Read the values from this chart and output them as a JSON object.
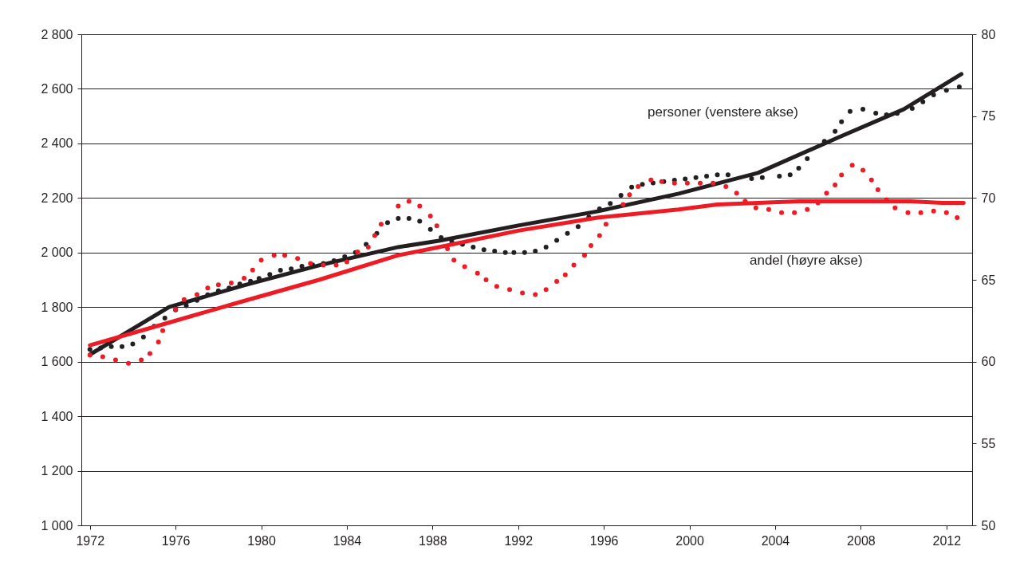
{
  "chart_data": {
    "type": "line",
    "xlim": [
      1971.6,
      2013.2
    ],
    "xticks": [
      1972,
      1976,
      1980,
      1984,
      1988,
      1992,
      1996,
      2000,
      2004,
      2008,
      2012
    ],
    "ylim": [
      1000,
      2800
    ],
    "yticks": [
      {
        "value": 1000,
        "label": "1 000"
      },
      {
        "value": 1200,
        "label": "1 200"
      },
      {
        "value": 1400,
        "label": "1 400"
      },
      {
        "value": 1600,
        "label": "1 600"
      },
      {
        "value": 1800,
        "label": "1 800"
      },
      {
        "value": 2000,
        "label": "2 000"
      },
      {
        "value": 2200,
        "label": "2 200"
      },
      {
        "value": 2400,
        "label": "2 400"
      },
      {
        "value": 2600,
        "label": "2 600"
      },
      {
        "value": 2800,
        "label": "2 800"
      }
    ],
    "y2lim": [
      50,
      80
    ],
    "y2ticks": [
      50,
      55,
      60,
      65,
      70,
      75,
      80
    ],
    "grid": "y",
    "line_style": "solid",
    "annotations": [
      "personer (venstere akse)",
      "andel (høyre akse)"
    ],
    "series": [
      {
        "type": "scatter",
        "color": "#231f20",
        "x": [
          1972.0,
          1972.5,
          1973.0,
          1973.5,
          1974.0,
          1974.5,
          1975.0,
          1975.5,
          1976.0,
          1976.5,
          1977.0,
          1977.5,
          1978.0,
          1978.5,
          1979.0,
          1979.5,
          1979.9,
          1980.4,
          1980.9,
          1981.4,
          1981.9,
          1982.4,
          1982.9,
          1983.4,
          1983.9,
          1984.4,
          1984.9,
          1985.4,
          1985.9,
          1986.4,
          1986.9,
          1987.4,
          1987.9,
          1988.4,
          1988.9,
          1989.4,
          1989.9,
          1990.4,
          1990.9,
          1991.4,
          1991.8,
          1992.3,
          1992.8,
          1993.3,
          1993.8,
          1994.3,
          1994.8,
          1995.3,
          1995.8,
          1996.3,
          1996.8,
          1997.3,
          1997.8,
          1998.3,
          1998.8,
          1999.3,
          1999.8,
          2000.3,
          2000.8,
          2001.3,
          2001.8,
          2002.9,
          2003.4,
          2004.2,
          2004.7,
          2005.1,
          2005.5,
          2006.3,
          2006.8,
          2007.1,
          2007.5,
          2008.1,
          2008.7,
          2009.2,
          2009.7,
          2010.4,
          2010.9,
          2011.4,
          2012.0,
          2012.6
        ],
        "values": [
          1645,
          1650,
          1655,
          1655,
          1665,
          1690,
          1730,
          1760,
          1790,
          1805,
          1825,
          1845,
          1860,
          1870,
          1885,
          1895,
          1905,
          1920,
          1935,
          1940,
          1950,
          1955,
          1960,
          1970,
          1985,
          2000,
          2030,
          2070,
          2110,
          2125,
          2125,
          2115,
          2085,
          2055,
          2040,
          2030,
          2020,
          2010,
          2005,
          2000,
          2000,
          2000,
          2005,
          2020,
          2045,
          2070,
          2095,
          2130,
          2160,
          2180,
          2210,
          2240,
          2250,
          2255,
          2260,
          2265,
          2270,
          2275,
          2280,
          2285,
          2285,
          2271,
          2275,
          2280,
          2285,
          2309,
          2344,
          2408,
          2444,
          2479,
          2517,
          2525,
          2511,
          2505,
          2510,
          2528,
          2552,
          2578,
          2595,
          2607
        ]
      },
      {
        "type": "scatter",
        "color": "#ed1c24",
        "axis": "y2",
        "x": [
          1972.0,
          1972.6,
          1973.2,
          1973.8,
          1974.4,
          1974.8,
          1975.2,
          1975.4,
          1976.0,
          1976.4,
          1977.0,
          1977.5,
          1978.0,
          1978.6,
          1979.2,
          1979.6,
          1980.0,
          1980.6,
          1981.1,
          1981.7,
          1982.3,
          1982.9,
          1983.5,
          1984.0,
          1984.5,
          1985.0,
          1985.3,
          1985.6,
          1986.4,
          1986.9,
          1987.4,
          1987.9,
          1988.2,
          1988.7,
          1989.0,
          1989.5,
          1990.1,
          1990.5,
          1991.0,
          1991.6,
          1992.2,
          1992.8,
          1993.3,
          1993.8,
          1994.2,
          1994.6,
          1995.1,
          1995.4,
          1995.8,
          1996.1,
          1996.9,
          1997.2,
          1997.6,
          1998.2,
          1998.7,
          1999.3,
          1999.9,
          2000.5,
          2001.1,
          2001.7,
          2002.2,
          2002.6,
          2003.1,
          2003.7,
          2004.3,
          2004.9,
          2005.5,
          2006.0,
          2006.4,
          2006.8,
          2007.1,
          2007.6,
          2008.1,
          2008.5,
          2008.8,
          2009.2,
          2009.6,
          2010.2,
          2010.8,
          2011.4,
          2012.0,
          2012.5
        ],
        "values": [
          60.4,
          60.3,
          60.1,
          59.9,
          60.1,
          60.5,
          61.2,
          61.9,
          63.2,
          63.8,
          64.1,
          64.5,
          64.7,
          64.8,
          65.1,
          65.6,
          66.2,
          66.5,
          66.5,
          66.3,
          66.0,
          65.9,
          65.9,
          66.1,
          66.7,
          67.0,
          67.7,
          68.4,
          69.5,
          69.8,
          69.5,
          68.9,
          68.3,
          66.9,
          66.2,
          65.8,
          65.4,
          65.0,
          64.6,
          64.4,
          64.2,
          64.1,
          64.4,
          64.9,
          65.3,
          65.9,
          66.5,
          67.1,
          67.7,
          68.4,
          69.6,
          70.2,
          70.7,
          71.1,
          71.0,
          70.9,
          70.9,
          70.9,
          70.9,
          70.7,
          70.3,
          69.8,
          69.4,
          69.3,
          69.1,
          69.1,
          69.3,
          69.7,
          70.3,
          70.8,
          71.4,
          72.0,
          71.7,
          71.1,
          70.5,
          69.9,
          69.4,
          69.1,
          69.1,
          69.2,
          69.1,
          68.8
        ]
      },
      {
        "color": "#ed1c24",
        "axis": "y2",
        "x": [
          1972.0,
          1975.2,
          1978.9,
          1982.7,
          1986.4,
          1988.3,
          1992.0,
          1995.7,
          1999.5,
          2001.3,
          2005.1,
          2010.3,
          2011.8,
          2012.8
        ],
        "values": [
          61.0,
          62.2,
          63.6,
          65.0,
          66.5,
          67.0,
          68.0,
          68.8,
          69.3,
          69.6,
          69.8,
          69.8,
          69.7,
          69.7
        ]
      },
      {
        "color": "#231f20",
        "x": [
          1972.0,
          1975.7,
          1979.2,
          1982.7,
          1986.4,
          1988.3,
          1992.0,
          1995.7,
          1999.5,
          2003.2,
          2006.9,
          2010.0,
          2012.7
        ],
        "values": [
          1626,
          1800,
          1880,
          1953,
          2020,
          2043,
          2099,
          2151,
          2216,
          2292,
          2420,
          2525,
          2654
        ]
      }
    ]
  }
}
